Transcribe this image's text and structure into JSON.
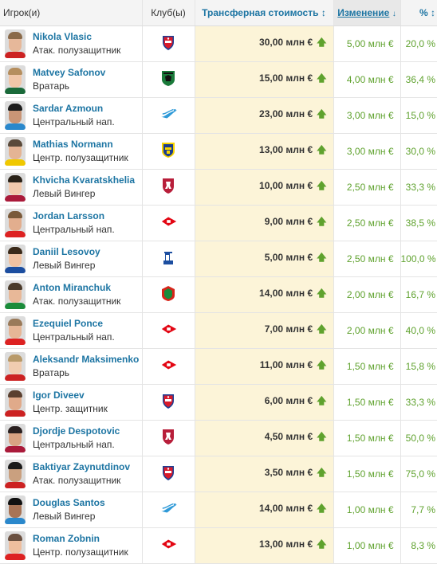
{
  "columns": {
    "player": "Игрок(и)",
    "club": "Клуб(ы)",
    "value": "Трансферная стоимость",
    "value_sort_icon": "↕",
    "change": "Изменение",
    "change_sort_icon": "↓",
    "pct": "%",
    "pct_icon": "↕"
  },
  "colors": {
    "link": "#1d75a3",
    "positive": "#5fa22e",
    "value_bg": "#fcf4d8"
  },
  "rows": [
    {
      "name": "Nikola Vlasic",
      "position": "Атак. полузащитник",
      "club_icon": "cska-crest-icon",
      "value": "30,00 млн €",
      "change": "5,00 млн €",
      "pct": "20,0 %"
    },
    {
      "name": "Matvey Safonov",
      "position": "Вратарь",
      "club_icon": "krasnodar-crest-icon",
      "value": "15,00 млн €",
      "change": "4,00 млн €",
      "pct": "36,4 %"
    },
    {
      "name": "Sardar Azmoun",
      "position": "Центральный нап.",
      "club_icon": "zenit-crest-icon",
      "value": "23,00 млн €",
      "change": "3,00 млн €",
      "pct": "15,0 %"
    },
    {
      "name": "Mathias Normann",
      "position": "Центр. полузащитник",
      "club_icon": "rostov-crest-icon",
      "value": "13,00 млн €",
      "change": "3,00 млн €",
      "pct": "30,0 %"
    },
    {
      "name": "Khvicha Kvaratskhelia",
      "position": "Левый Вингер",
      "club_icon": "rubin-crest-icon",
      "value": "10,00 млн €",
      "change": "2,50 млн €",
      "pct": "33,3 %"
    },
    {
      "name": "Jordan Larsson",
      "position": "Центральный нап.",
      "club_icon": "spartak-crest-icon",
      "value": "9,00 млн €",
      "change": "2,50 млн €",
      "pct": "38,5 %"
    },
    {
      "name": "Daniil Lesovoy",
      "position": "Левый Вингер",
      "club_icon": "dynamo-crest-icon",
      "value": "5,00 млн €",
      "change": "2,50 млн €",
      "pct": "100,0 %"
    },
    {
      "name": "Anton Miranchuk",
      "position": "Атак. полузащитник",
      "club_icon": "lokomotiv-crest-icon",
      "value": "14,00 млн €",
      "change": "2,00 млн €",
      "pct": "16,7 %"
    },
    {
      "name": "Ezequiel Ponce",
      "position": "Центральный нап.",
      "club_icon": "spartak-crest-icon",
      "value": "7,00 млн €",
      "change": "2,00 млн €",
      "pct": "40,0 %"
    },
    {
      "name": "Aleksandr Maksimenko",
      "position": "Вратарь",
      "club_icon": "spartak-crest-icon",
      "value": "11,00 млн €",
      "change": "1,50 млн €",
      "pct": "15,8 %"
    },
    {
      "name": "Igor Diveev",
      "position": "Центр. защитник",
      "club_icon": "cska-crest-icon",
      "value": "6,00 млн €",
      "change": "1,50 млн €",
      "pct": "33,3 %"
    },
    {
      "name": "Djordje Despotovic",
      "position": "Центральный нап.",
      "club_icon": "rubin-crest-icon",
      "value": "4,50 млн €",
      "change": "1,50 млн €",
      "pct": "50,0 %"
    },
    {
      "name": "Baktiyar Zaynutdinov",
      "position": "Атак. полузащитник",
      "club_icon": "cska-crest-icon",
      "value": "3,50 млн €",
      "change": "1,50 млн €",
      "pct": "75,0 %"
    },
    {
      "name": "Douglas Santos",
      "position": "Левый Вингер",
      "club_icon": "zenit-crest-icon",
      "value": "14,00 млн €",
      "change": "1,00 млн €",
      "pct": "7,7 %"
    },
    {
      "name": "Roman Zobnin",
      "position": "Центр. полузащитник",
      "club_icon": "spartak-crest-icon",
      "value": "13,00 млн €",
      "change": "1,00 млн €",
      "pct": "8,3 %"
    }
  ],
  "value_trend_icon": "up-arrow-icon",
  "value_trend_glyph": "🡅"
}
